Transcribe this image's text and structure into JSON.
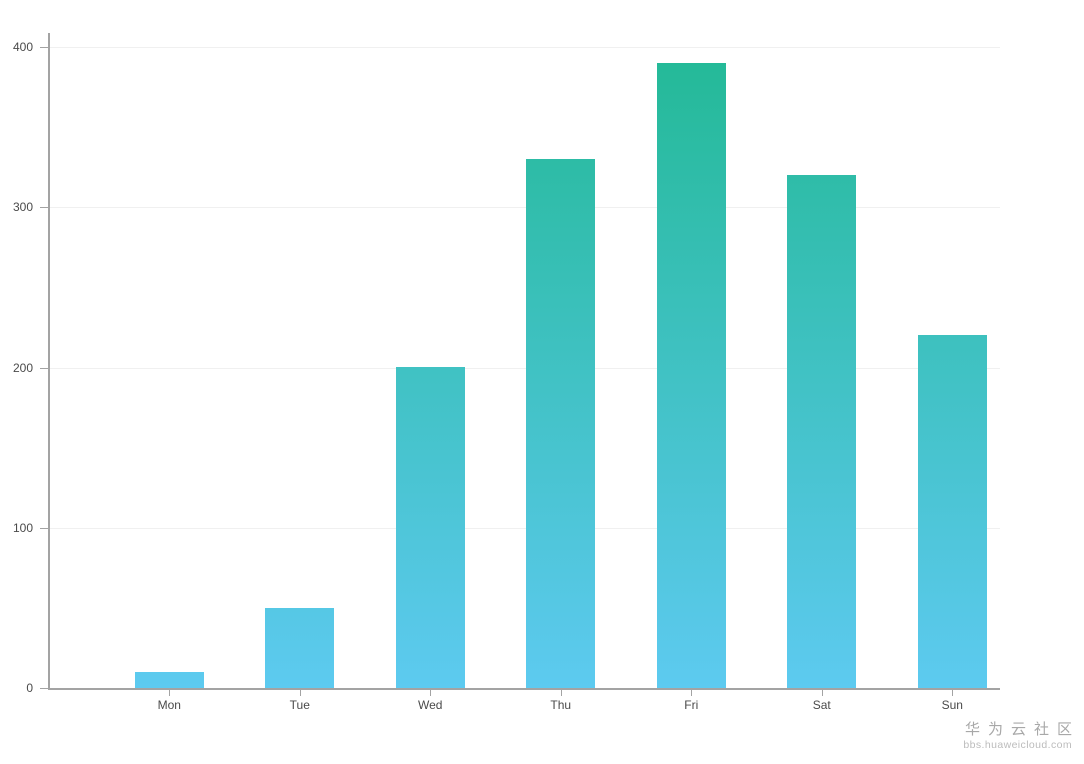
{
  "chart_data": {
    "type": "bar",
    "title": "",
    "xlabel": "",
    "ylabel": "",
    "categories": [
      "Mon",
      "Tue",
      "Wed",
      "Thu",
      "Fri",
      "Sat",
      "Sun"
    ],
    "values": [
      10,
      50,
      200,
      330,
      390,
      320,
      220
    ],
    "ylim": [
      0,
      400
    ],
    "yticks": [
      0,
      100,
      200,
      300,
      400
    ],
    "grid": "horizontal gridlines on",
    "legend": "none",
    "bar_gradient_top": "#23b996",
    "bar_gradient_bottom": "#5dcaf0",
    "axis_line_color": "#a3a3a3",
    "grid_line_color": "#f0f0f0",
    "axis_label_color": "#4a4a4a"
  },
  "watermark": {
    "line1": "华为云社区",
    "line2": "bbs.huaweicloud.com"
  }
}
